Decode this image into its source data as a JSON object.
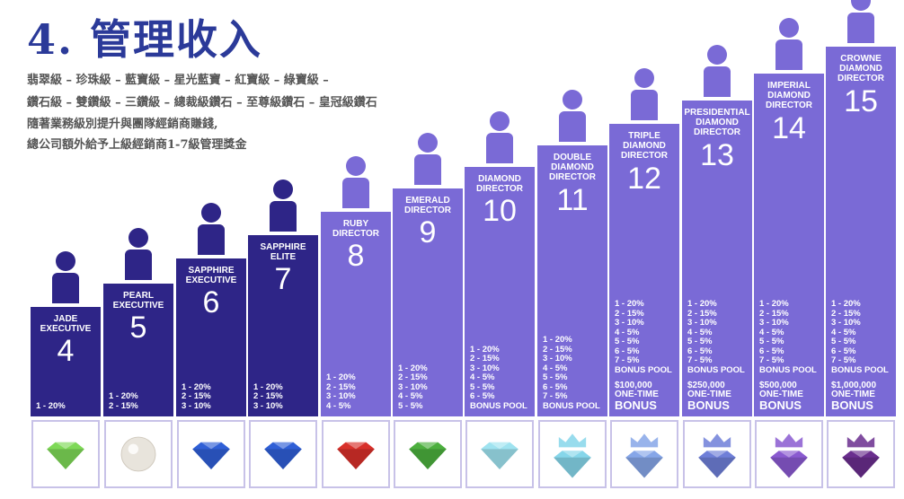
{
  "title": "4. 管理收入",
  "description_lines": [
    "翡翠級 – 珍珠級 – 藍寶級 – 星光藍寶 – 紅寶級 – 綠寶級 –",
    "鑽石級 – 雙鑽級 – 三鑽級 – 總裁級鑽石 – 至尊級鑽石 – 皇冠級鑽石",
    "隨著業務級別提升與團隊經銷商賺錢,",
    "總公司額外給予上級經銷商1-7級管理獎金"
  ],
  "ranks": [
    {
      "title": "JADE EXECUTIVE",
      "number": "4",
      "rates": [
        "1 - 20%"
      ],
      "bonus": "",
      "color": "#2e2587",
      "gem": "jade-gem-icon",
      "gem_color": "#7ed957"
    },
    {
      "title": "PEARL EXECUTIVE",
      "number": "5",
      "rates": [
        "1 - 20%",
        "2 - 15%"
      ],
      "bonus": "",
      "color": "#2e2587",
      "gem": "pearl-icon",
      "gem_color": "#e8e4dc"
    },
    {
      "title": "SAPPHIRE EXECUTIVE",
      "number": "6",
      "rates": [
        "1 - 20%",
        "2 - 15%",
        "3 - 10%"
      ],
      "bonus": "",
      "color": "#2e2587",
      "gem": "sapphire-gem-icon",
      "gem_color": "#2f5fd6"
    },
    {
      "title": "SAPPHIRE ELITE",
      "number": "7",
      "rates": [
        "1 - 20%",
        "2 - 15%",
        "3 - 10%"
      ],
      "bonus": "",
      "color": "#2e2587",
      "gem": "sapphire-gem-icon",
      "gem_color": "#2f5fd6"
    },
    {
      "title": "RUBY DIRECTOR",
      "number": "8",
      "rates": [
        "1 - 20%",
        "2 - 15%",
        "3 - 10%",
        "4 - 5%"
      ],
      "bonus": "",
      "color": "#7a6ad6",
      "gem": "ruby-gem-icon",
      "gem_color": "#d8302a"
    },
    {
      "title": "EMERALD DIRECTOR",
      "number": "9",
      "rates": [
        "1 - 20%",
        "2 - 15%",
        "3 - 10%",
        "4 - 5%",
        "5 - 5%"
      ],
      "bonus": "",
      "color": "#7a6ad6",
      "gem": "emerald-gem-icon",
      "gem_color": "#4caf3e"
    },
    {
      "title": "DIAMOND DIRECTOR",
      "number": "10",
      "rates": [
        "1 - 20%",
        "2 - 15%",
        "3 - 10%",
        "4 - 5%",
        "5 - 5%",
        "6 - 5%",
        "BONUS POOL"
      ],
      "bonus": "",
      "color": "#7a6ad6",
      "gem": "diamond-gem-icon",
      "gem_color": "#9fe3f0"
    },
    {
      "title": "DOUBLE DIAMOND DIRECTOR",
      "number": "11",
      "rates": [
        "1 - 20%",
        "2 - 15%",
        "3 - 10%",
        "4 - 5%",
        "5 - 5%",
        "6 - 5%",
        "7 - 5%",
        "BONUS POOL"
      ],
      "bonus": "",
      "color": "#7a6ad6",
      "gem": "double-diamond-crown-icon",
      "gem_color": "#86d6ea"
    },
    {
      "title": "TRIPLE DIAMOND DIRECTOR",
      "number": "12",
      "rates": [
        "1 - 20%",
        "2 - 15%",
        "3 - 10%",
        "4 - 5%",
        "5 - 5%",
        "6 - 5%",
        "7 - 5%",
        "BONUS POOL"
      ],
      "bonus": "$100,000 ONE-TIME BONUS",
      "color": "#7a6ad6",
      "gem": "triple-diamond-crown-icon",
      "gem_color": "#86a6e8"
    },
    {
      "title": "PRESIDENTIAL DIAMOND DIRECTOR",
      "number": "13",
      "rates": [
        "1 - 20%",
        "2 - 15%",
        "3 - 10%",
        "4 - 5%",
        "5 - 5%",
        "6 - 5%",
        "7 - 5%",
        "BONUS POOL"
      ],
      "bonus": "$250,000 ONE-TIME BONUS",
      "color": "#7a6ad6",
      "gem": "presidential-diamond-crown-icon",
      "gem_color": "#6f7fd8"
    },
    {
      "title": "IMPERIAL DIAMOND DIRECTOR",
      "number": "14",
      "rates": [
        "1 - 20%",
        "2 - 15%",
        "3 - 10%",
        "4 - 5%",
        "5 - 5%",
        "6 - 5%",
        "7 - 5%",
        "BONUS POOL"
      ],
      "bonus": "$500,000 ONE-TIME BONUS",
      "color": "#7a6ad6",
      "gem": "imperial-diamond-crown-icon",
      "gem_color": "#8a5ad0"
    },
    {
      "title": "CROWNE DIAMOND DIRECTOR",
      "number": "15",
      "rates": [
        "1 - 20%",
        "2 - 15%",
        "3 - 10%",
        "4 - 5%",
        "5 - 5%",
        "6 - 5%",
        "7 - 5%",
        "BONUS POOL"
      ],
      "bonus": "$1,000,000 ONE-TIME BONUS",
      "color": "#7a6ad6",
      "gem": "crowne-diamond-crown-icon",
      "gem_color": "#6a2e8e"
    }
  ]
}
